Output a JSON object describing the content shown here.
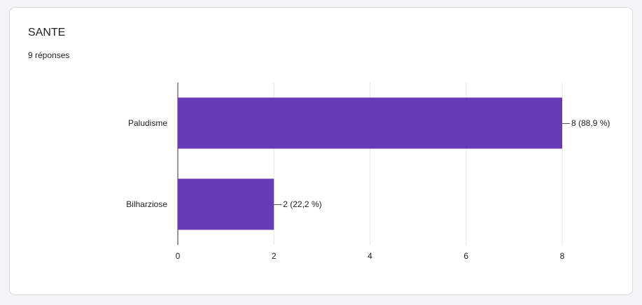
{
  "chart_data": {
    "type": "bar",
    "orientation": "horizontal",
    "title": "SANTE",
    "subtitle": "9 réponses",
    "categories": [
      "Paludisme",
      "Bilharziose"
    ],
    "values": [
      8,
      2
    ],
    "value_labels": [
      "8 (88,9 %)",
      "2 (22,2 %)"
    ],
    "color": "#673ab7",
    "xlim": [
      0,
      8
    ],
    "xticks": [
      0,
      2,
      4,
      6,
      8
    ],
    "grid": true
  }
}
